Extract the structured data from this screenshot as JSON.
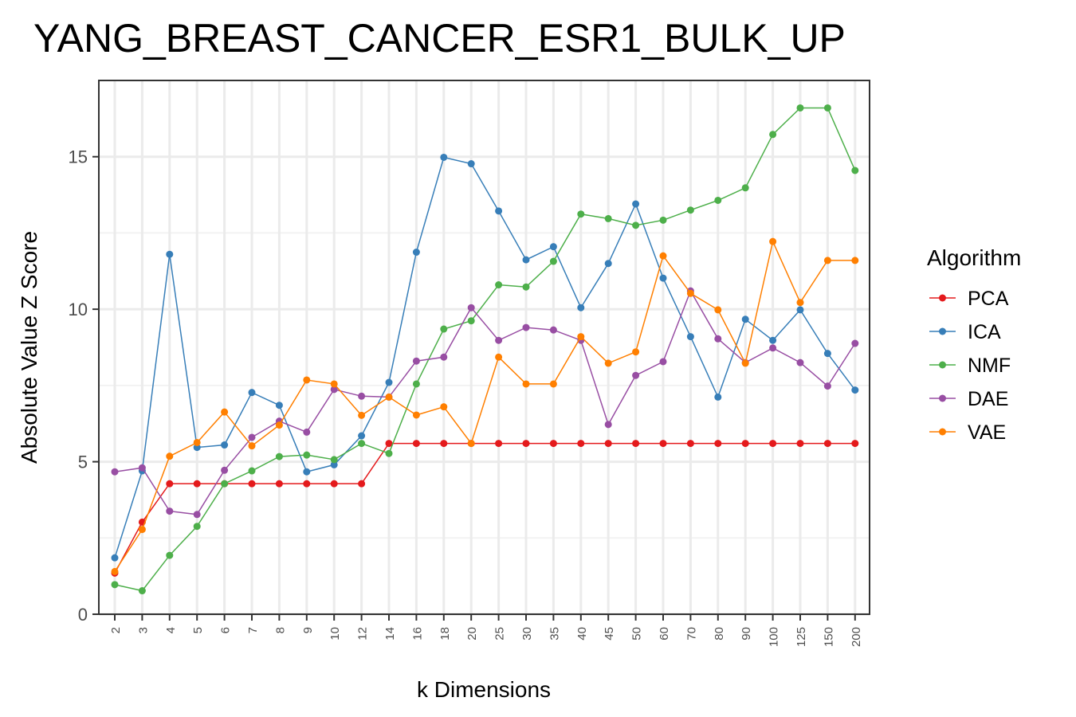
{
  "chart_data": {
    "type": "line",
    "title": "YANG_BREAST_CANCER_ESR1_BULK_UP",
    "xlabel": "k Dimensions",
    "ylabel": "Absolute Value Z Score",
    "categories": [
      "2",
      "3",
      "4",
      "5",
      "6",
      "7",
      "8",
      "9",
      "10",
      "12",
      "14",
      "16",
      "18",
      "20",
      "25",
      "30",
      "35",
      "40",
      "45",
      "50",
      "60",
      "70",
      "80",
      "90",
      "100",
      "125",
      "150",
      "200"
    ],
    "ylim": [
      0,
      17.5
    ],
    "yticks": [
      "0",
      "5",
      "10",
      "15"
    ],
    "grid": true,
    "legend": {
      "title": "Algorithm",
      "placement": "right"
    },
    "series": [
      {
        "name": "PCA",
        "color": "#E41A1C",
        "values": [
          1.35,
          3.02,
          4.28,
          4.28,
          4.28,
          4.28,
          4.28,
          4.28,
          4.28,
          4.28,
          5.6,
          5.6,
          5.6,
          5.6,
          5.6,
          5.6,
          5.6,
          5.6,
          5.6,
          5.6,
          5.6,
          5.6,
          5.6,
          5.6,
          5.6,
          5.6,
          5.6,
          5.6
        ]
      },
      {
        "name": "ICA",
        "color": "#377EB8",
        "values": [
          1.85,
          4.7,
          11.8,
          5.47,
          5.55,
          7.27,
          6.85,
          4.67,
          4.9,
          5.85,
          7.6,
          11.87,
          14.98,
          14.77,
          13.22,
          11.62,
          12.05,
          10.05,
          11.5,
          13.45,
          11.02,
          9.1,
          7.12,
          9.67,
          8.98,
          9.98,
          8.55,
          7.35
        ]
      },
      {
        "name": "NMF",
        "color": "#4DAF4A",
        "values": [
          0.97,
          0.77,
          1.93,
          2.88,
          4.28,
          4.7,
          5.17,
          5.22,
          5.07,
          5.6,
          5.27,
          7.55,
          9.35,
          9.62,
          10.8,
          10.73,
          11.57,
          13.12,
          12.97,
          12.75,
          12.92,
          13.25,
          13.57,
          13.98,
          15.73,
          16.6,
          16.6,
          14.55
        ]
      },
      {
        "name": "DAE",
        "color": "#984EA3",
        "values": [
          4.67,
          4.8,
          3.38,
          3.27,
          4.72,
          5.8,
          6.33,
          5.97,
          7.37,
          7.15,
          7.12,
          8.3,
          8.43,
          10.05,
          8.98,
          9.4,
          9.32,
          8.98,
          6.22,
          7.83,
          8.28,
          10.6,
          9.03,
          8.25,
          8.73,
          8.25,
          7.48,
          8.88
        ]
      },
      {
        "name": "VAE",
        "color": "#FF7F00",
        "values": [
          1.4,
          2.78,
          5.18,
          5.63,
          6.63,
          5.52,
          6.2,
          7.68,
          7.55,
          6.52,
          7.12,
          6.53,
          6.8,
          5.6,
          8.43,
          7.55,
          7.55,
          9.1,
          8.23,
          8.6,
          11.75,
          10.52,
          9.98,
          8.23,
          12.22,
          10.22,
          11.6,
          11.6
        ]
      }
    ]
  }
}
